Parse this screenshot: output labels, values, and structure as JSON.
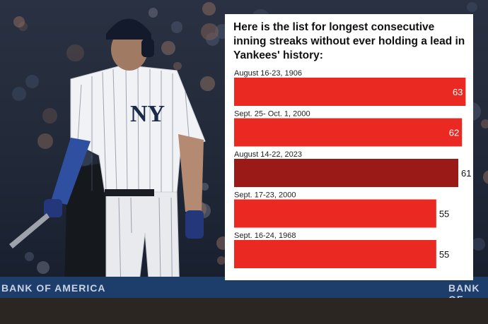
{
  "photo": {
    "description_icon": "baseball-player-photo",
    "banner_left": "BANK OF AMERICA",
    "banner_right": "BANK OF AME"
  },
  "chart_data": {
    "type": "bar",
    "orientation": "horizontal",
    "title": "Here is the list for longest consecutive inning streaks without ever holding a lead in Yankees' history:",
    "categories": [
      "August 16-23, 1906",
      "Sept. 25- Oct. 1, 2000",
      "August 14-22, 2023",
      "Sept. 17-23, 2000",
      "Sept. 16-24, 1968"
    ],
    "values": [
      63,
      62,
      61,
      55,
      55
    ],
    "highlight_index": 2,
    "colors": {
      "bar": "#ea2a22",
      "highlight": "#9a1a17",
      "label_inside": "#ffffff",
      "label_outside": "#111111"
    },
    "xlim": [
      0,
      66
    ],
    "grid": false,
    "legend": "none"
  }
}
